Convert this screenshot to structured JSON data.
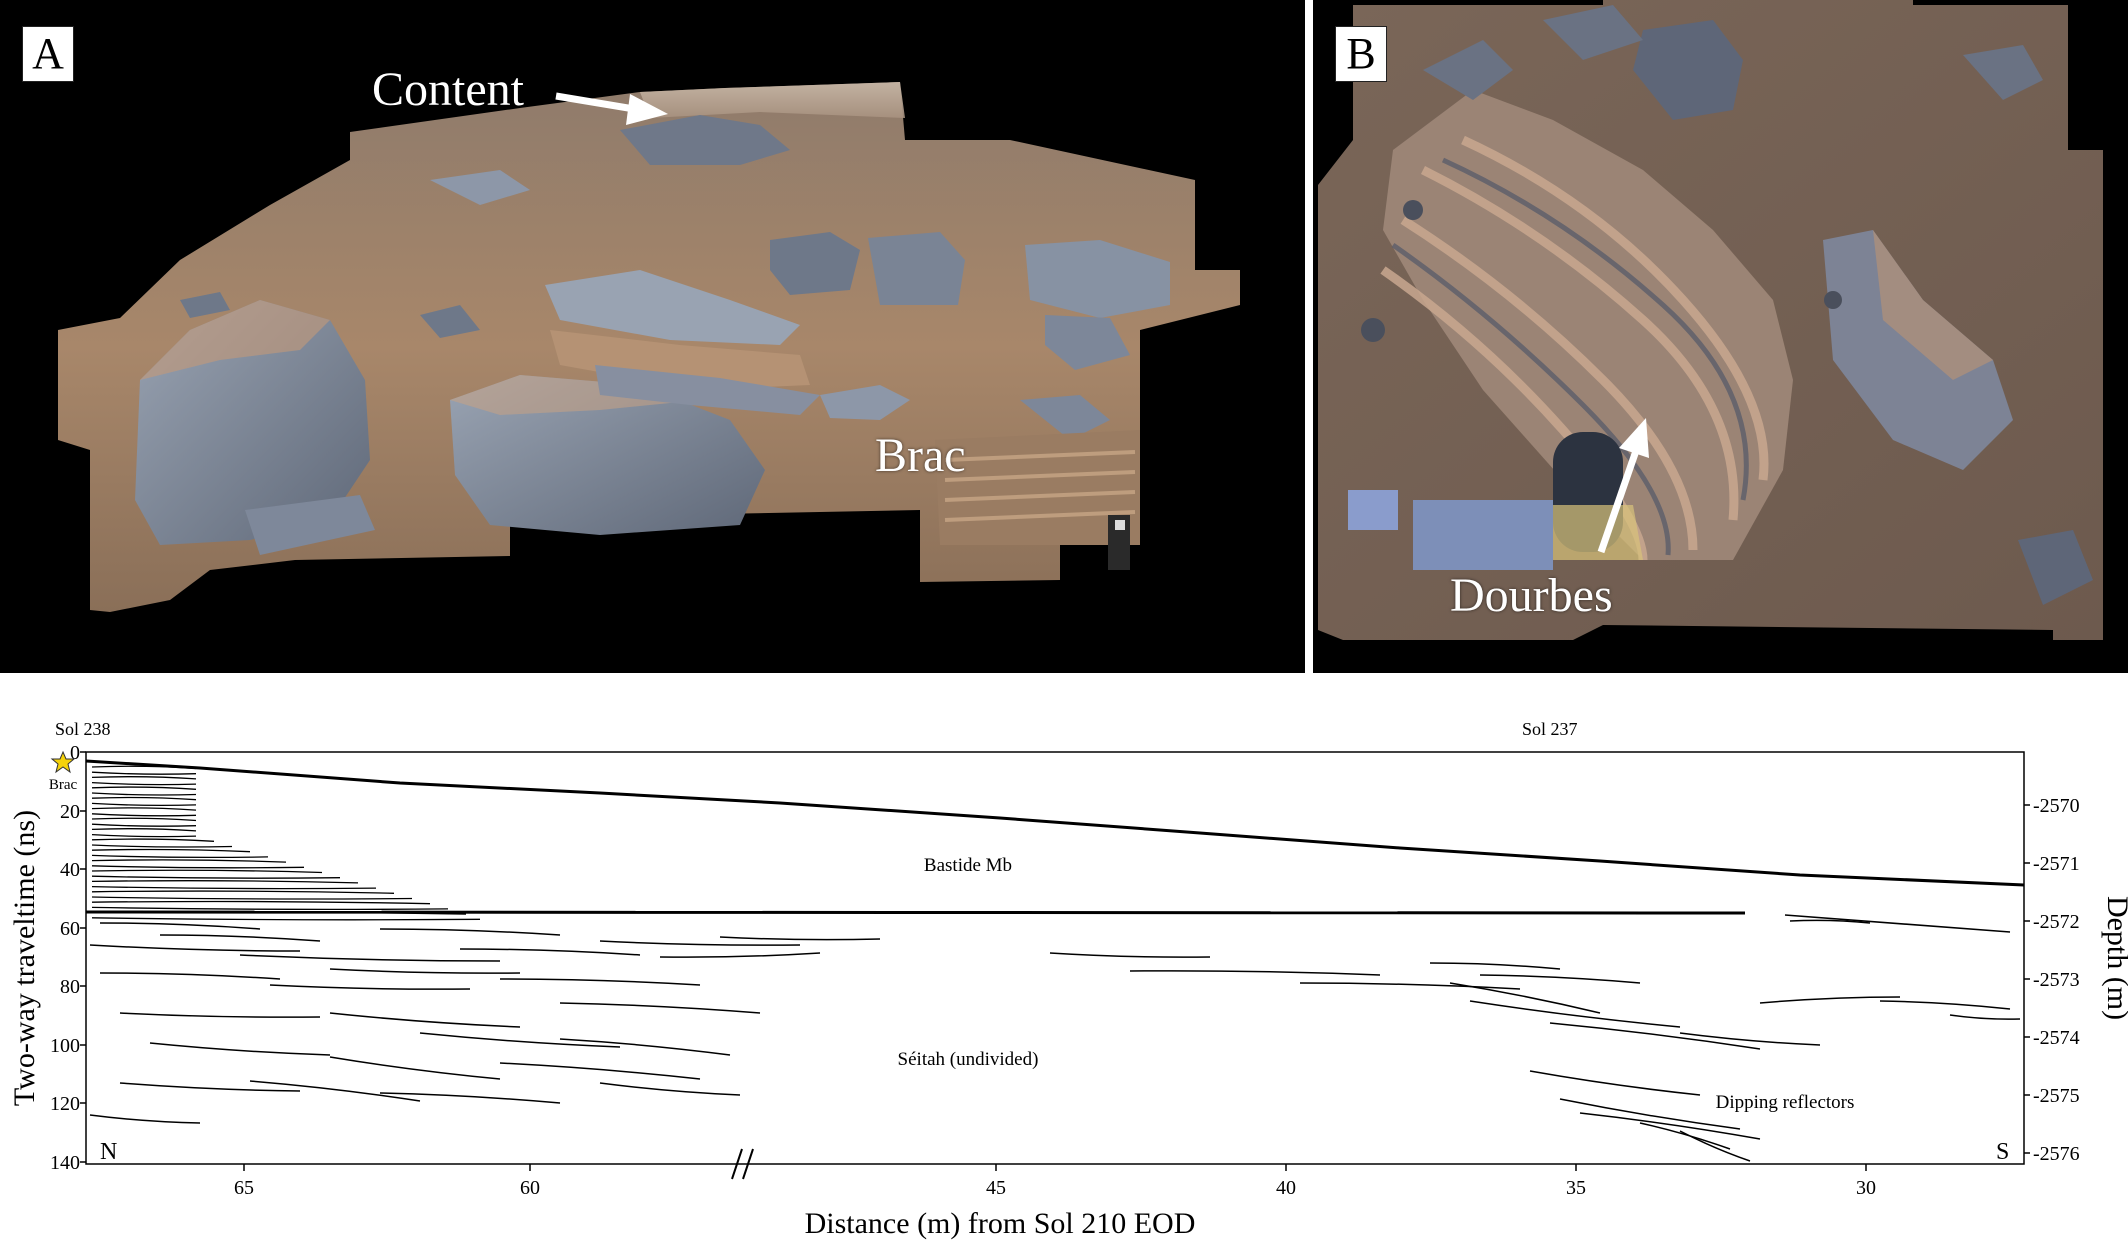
{
  "panel_a": {
    "letter": "A",
    "labels": {
      "content": "Content",
      "brac": "Brac"
    }
  },
  "panel_b": {
    "letter": "B",
    "labels": {
      "dourbes": "Dourbes"
    }
  },
  "colors": {
    "background": "#000000",
    "sand": "#a8876a",
    "rock": "#7d8799",
    "rock_light": "#9aa4b3",
    "outcrop": "#b39172",
    "marker_star": "#f5d20a"
  },
  "radargram": {
    "top_labels": {
      "left": "Sol 238",
      "right": "Sol 237"
    },
    "x_axis": {
      "label": "Distance (m) from Sol 210 EOD",
      "ticks": [
        "65",
        "60",
        "45",
        "40",
        "35",
        "30"
      ]
    },
    "left_axis": {
      "label": "Two-way traveltime (ns)",
      "ticks": [
        "0",
        "20",
        "40",
        "60",
        "80",
        "100",
        "120",
        "140"
      ]
    },
    "right_axis": {
      "label": "Depth (m)",
      "ticks": [
        "-2570",
        "-2571",
        "-2572",
        "-2573",
        "-2574",
        "-2575",
        "-2576"
      ]
    },
    "units": {
      "bastide": "Bastide Mb",
      "seitah": "Séitah (undivided)",
      "dipping": "Dipping reflectors"
    },
    "marker": "Brac",
    "north": "N",
    "south": "S"
  }
}
